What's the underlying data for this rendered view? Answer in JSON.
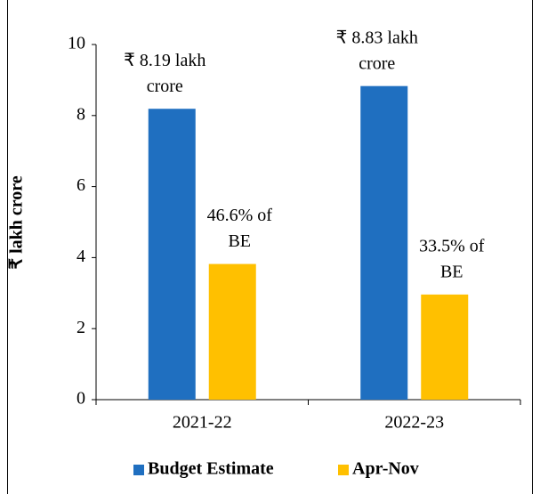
{
  "chart_data": {
    "type": "bar",
    "ylabel": "₹ lakh crore",
    "categories": [
      "2021-22",
      "2022-23"
    ],
    "series": [
      {
        "name": "Budget Estimate",
        "color": "#1f6fc0",
        "values": [
          8.19,
          8.83
        ],
        "value_labels": [
          [
            "₹ 8.19 lakh",
            "crore"
          ],
          [
            "₹ 8.83 lakh",
            "crore"
          ]
        ]
      },
      {
        "name": "Apr-Nov",
        "color": "#ffc000",
        "values": [
          3.82,
          2.96
        ],
        "annotations": [
          [
            "46.6% of",
            "BE"
          ],
          [
            "33.5% of",
            "BE"
          ]
        ]
      }
    ],
    "ylim": [
      0,
      10
    ],
    "yticks": [
      0,
      2,
      4,
      6,
      8,
      10
    ],
    "grid": false,
    "legend": "bottom"
  }
}
